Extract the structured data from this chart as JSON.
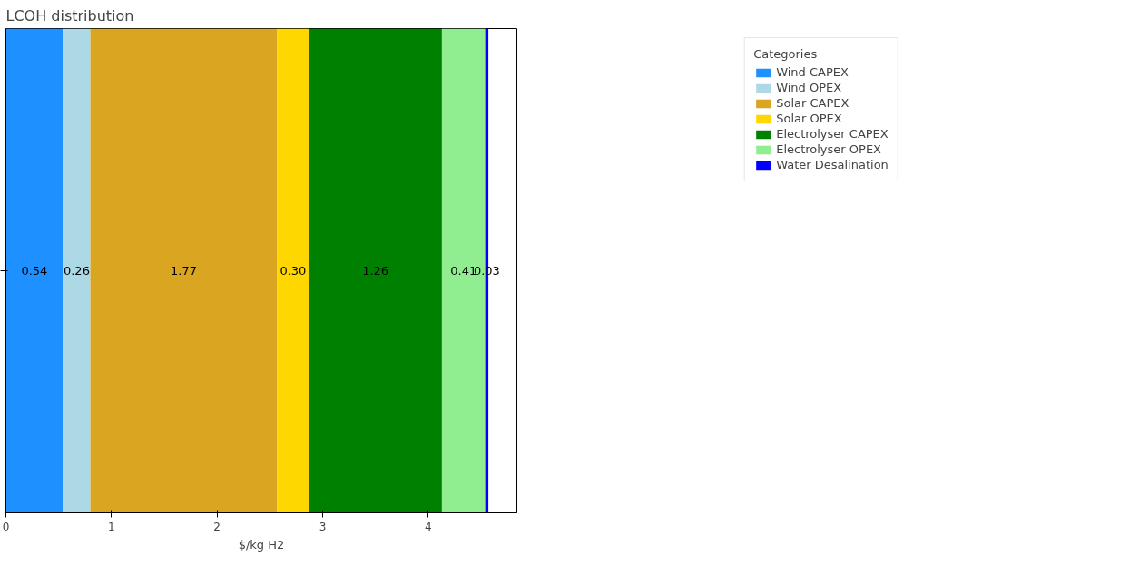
{
  "chart_data": {
    "type": "bar",
    "orientation": "horizontal",
    "stacked": true,
    "title": "LCOH distribution",
    "xlabel": "$/kg H2",
    "legend_title": "Categories",
    "legend": "top right",
    "grid": false,
    "categories": [
      null
    ],
    "xlim": [
      0,
      4.84
    ],
    "xticks": [
      0,
      1,
      2,
      3,
      4
    ],
    "series": [
      {
        "name": "Wind CAPEX",
        "color": "#1e90ff",
        "values": [
          0.54
        ],
        "value_labels": [
          "0.54"
        ]
      },
      {
        "name": "Wind OPEX",
        "color": "#add8e6",
        "values": [
          0.26
        ],
        "value_labels": [
          "0.26"
        ]
      },
      {
        "name": "Solar CAPEX",
        "color": "#daa520",
        "values": [
          1.77
        ],
        "value_labels": [
          "1.77"
        ]
      },
      {
        "name": "Solar OPEX",
        "color": "#ffd700",
        "values": [
          0.3
        ],
        "value_labels": [
          "0.30"
        ]
      },
      {
        "name": "Electrolyser CAPEX",
        "color": "#008000",
        "values": [
          1.26
        ],
        "value_labels": [
          "1.26"
        ]
      },
      {
        "name": "Electrolyser OPEX",
        "color": "#90ee90",
        "values": [
          0.41
        ],
        "value_labels": [
          "0.41"
        ]
      },
      {
        "name": "Water Desalination",
        "color": "#0000ff",
        "values": [
          0.03
        ],
        "value_labels": [
          "0.03"
        ]
      }
    ]
  }
}
